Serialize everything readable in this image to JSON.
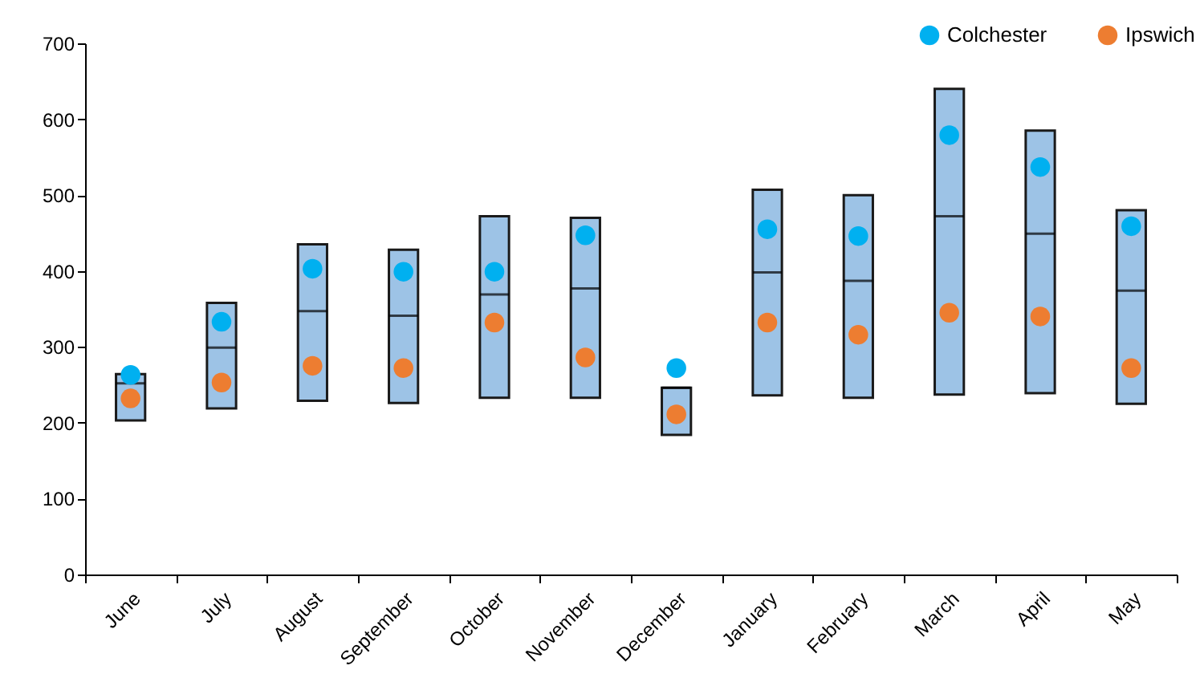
{
  "chart_data": {
    "type": "box",
    "categories": [
      "June",
      "July",
      "August",
      "September",
      "October",
      "November",
      "December",
      "January",
      "February",
      "March",
      "April",
      "May"
    ],
    "boxes": [
      {
        "low": 203,
        "q1": 203,
        "median": 252,
        "q3": 264,
        "high": 264
      },
      {
        "low": 219,
        "q1": 219,
        "median": 299,
        "q3": 358,
        "high": 358
      },
      {
        "low": 229,
        "q1": 229,
        "median": 347,
        "q3": 435,
        "high": 435
      },
      {
        "low": 226,
        "q1": 226,
        "median": 341,
        "q3": 428,
        "high": 428
      },
      {
        "low": 233,
        "q1": 233,
        "median": 369,
        "q3": 472,
        "high": 472
      },
      {
        "low": 233,
        "q1": 233,
        "median": 377,
        "q3": 470,
        "high": 470
      },
      {
        "low": 184,
        "q1": 184,
        "median": 246,
        "q3": 246,
        "high": 246
      },
      {
        "low": 236,
        "q1": 236,
        "median": 398,
        "q3": 507,
        "high": 507
      },
      {
        "low": 233,
        "q1": 233,
        "median": 387,
        "q3": 500,
        "high": 500
      },
      {
        "low": 237,
        "q1": 237,
        "median": 472,
        "q3": 640,
        "high": 640
      },
      {
        "low": 239,
        "q1": 239,
        "median": 449,
        "q3": 585,
        "high": 585
      },
      {
        "low": 225,
        "q1": 225,
        "median": 374,
        "q3": 480,
        "high": 480
      }
    ],
    "color": "#9dc3e6",
    "series": [
      {
        "name": "Colchester",
        "type": "scatter",
        "color": "#00b0f0",
        "values": [
          263,
          333,
          403,
          399,
          399,
          447,
          272,
          455,
          446,
          579,
          537,
          459
        ]
      },
      {
        "name": "Ipswich",
        "type": "scatter",
        "color": "#ed7d31",
        "values": [
          232,
          253,
          275,
          272,
          332,
          286,
          211,
          332,
          316,
          345,
          340,
          272
        ]
      }
    ],
    "ylim": [
      0,
      700
    ],
    "yticks": [
      0,
      100,
      200,
      300,
      400,
      500,
      600,
      700
    ],
    "grid": false,
    "legend": "top right",
    "marker": "circle"
  }
}
